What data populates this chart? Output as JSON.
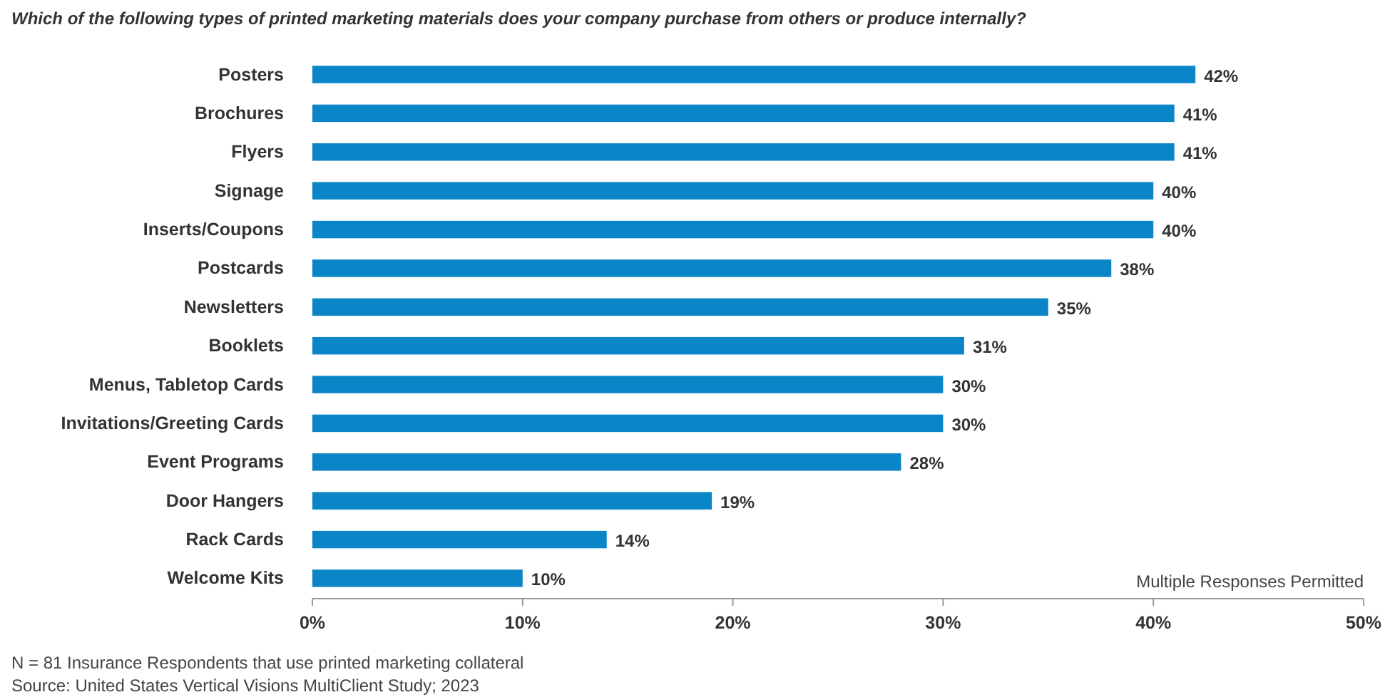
{
  "chart_data": {
    "type": "bar",
    "orientation": "horizontal",
    "title": "Which of the following types of printed marketing materials does your company purchase from others or produce internally?",
    "categories": [
      "Posters",
      "Brochures",
      "Flyers",
      "Signage",
      "Inserts/Coupons",
      "Postcards",
      "Newsletters",
      "Booklets",
      "Menus, Tabletop Cards",
      "Invitations/Greeting Cards",
      "Event Programs",
      "Door Hangers",
      "Rack Cards",
      "Welcome Kits"
    ],
    "values": [
      42,
      41,
      41,
      40,
      40,
      38,
      35,
      31,
      30,
      30,
      28,
      19,
      14,
      10
    ],
    "value_labels": [
      "42%",
      "41%",
      "41%",
      "40%",
      "40%",
      "38%",
      "35%",
      "31%",
      "30%",
      "30%",
      "28%",
      "19%",
      "14%",
      "10%"
    ],
    "color": "#0a86c8",
    "xlim": [
      0,
      50
    ],
    "xticks": [
      {
        "value": 0,
        "label": "0%"
      },
      {
        "value": 10,
        "label": "10%"
      },
      {
        "value": 20,
        "label": "20%"
      },
      {
        "value": 30,
        "label": "30%"
      },
      {
        "value": 40,
        "label": "40%"
      },
      {
        "value": 50,
        "label": "50%"
      }
    ],
    "grid": false,
    "annotations": [
      "Multiple Responses Permitted",
      "N = 81 Insurance Respondents that use printed marketing collateral",
      "Source: United States Vertical Visions MultiClient Study; 2023"
    ]
  }
}
